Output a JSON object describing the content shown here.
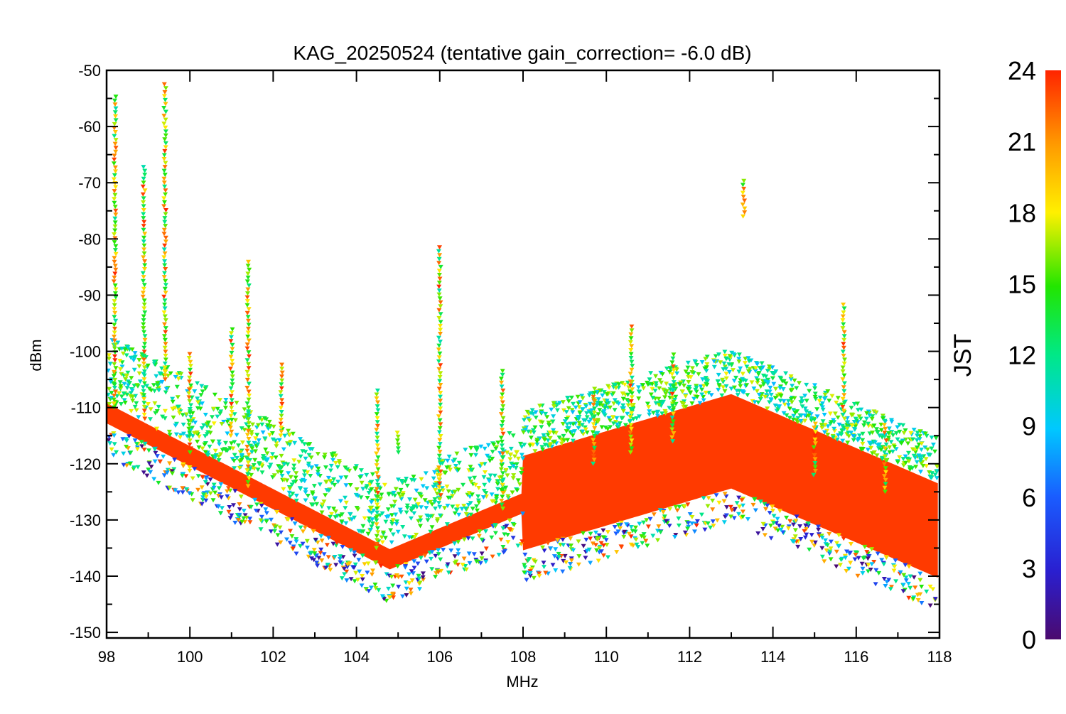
{
  "chart_data": {
    "type": "scatter",
    "title": "KAG_20250524 (tentative gain_correction= -6.0 dB)",
    "xlabel": "MHz",
    "ylabel": "dBm",
    "xlim": [
      98,
      118
    ],
    "ylim": [
      -151,
      -50
    ],
    "x_ticks": [
      "98",
      "100",
      "102",
      "104",
      "106",
      "108",
      "110",
      "112",
      "114",
      "116",
      "118"
    ],
    "y_ticks": [
      "-50",
      "-60",
      "-70",
      "-80",
      "-90",
      "-100",
      "-110",
      "-120",
      "-130",
      "-140",
      "-150"
    ],
    "colorbar": {
      "label": "JST",
      "range": [
        0,
        24
      ],
      "ticks": [
        "0",
        "3",
        "6",
        "9",
        "12",
        "15",
        "18",
        "21",
        "24"
      ],
      "colormap": "rainbow"
    },
    "marker": "downward triangle",
    "grid": false,
    "noise_floor_peak": {
      "x": 104.8,
      "y": -137
    },
    "noise_floor_hump": {
      "x": 113.0,
      "y": -116
    },
    "signals": [
      {
        "x": 98.2,
        "y_top": -54,
        "y_bottom": -110
      },
      {
        "x": 98.9,
        "y_top": -67,
        "y_bottom": -112
      },
      {
        "x": 99.4,
        "y_top": -52,
        "y_bottom": -105
      },
      {
        "x": 100.0,
        "y_top": -100,
        "y_bottom": -118
      },
      {
        "x": 101.0,
        "y_top": -96,
        "y_bottom": -115
      },
      {
        "x": 101.4,
        "y_top": -84,
        "y_bottom": -124
      },
      {
        "x": 102.2,
        "y_top": -102,
        "y_bottom": -115
      },
      {
        "x": 104.5,
        "y_top": -107,
        "y_bottom": -135
      },
      {
        "x": 105.0,
        "y_top": -114,
        "y_bottom": -118
      },
      {
        "x": 106.0,
        "y_top": -81,
        "y_bottom": -127
      },
      {
        "x": 107.5,
        "y_top": -103,
        "y_bottom": -128
      },
      {
        "x": 109.7,
        "y_top": -106,
        "y_bottom": -120
      },
      {
        "x": 110.6,
        "y_top": -95,
        "y_bottom": -118
      },
      {
        "x": 111.6,
        "y_top": -100,
        "y_bottom": -116
      },
      {
        "x": 113.3,
        "y_top": -69,
        "y_bottom": -76
      },
      {
        "x": 115.0,
        "y_top": -112,
        "y_bottom": -122
      },
      {
        "x": 115.7,
        "y_top": -91,
        "y_bottom": -112
      },
      {
        "x": 116.7,
        "y_top": -112,
        "y_bottom": -125
      }
    ]
  }
}
